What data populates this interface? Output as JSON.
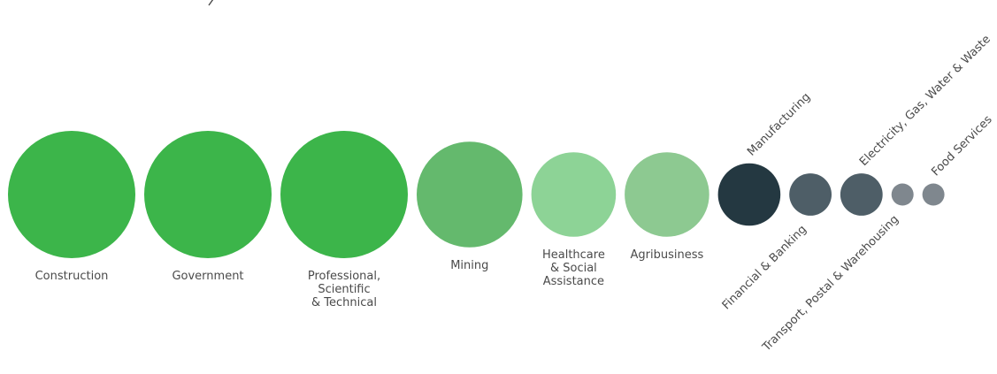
{
  "chart_data": {
    "type": "bubble",
    "series": [
      {
        "label": [
          "Construction"
        ],
        "value": 100,
        "color": "#3cb54a"
      },
      {
        "label": [
          "Government"
        ],
        "value": 100,
        "color": "#3cb54a"
      },
      {
        "label": [
          "Professional,",
          "Scientific",
          "& Technical"
        ],
        "value": 100,
        "color": "#3cb54a"
      },
      {
        "label": [
          "Mining"
        ],
        "value": 69,
        "color": "#64b96d"
      },
      {
        "label": [
          "Healthcare",
          "& Social",
          "Assistance"
        ],
        "value": 44,
        "color": "#8dd396"
      },
      {
        "label": [
          "Agribusiness"
        ],
        "value": 44,
        "color": "#8dc991"
      },
      {
        "label": [
          "Manufacturing"
        ],
        "value": 24,
        "color": "#243841"
      },
      {
        "label": [
          "Financial & Banking"
        ],
        "value": 11,
        "color": "#4e5e67"
      },
      {
        "label": [
          "Electricity, Gas, Water & Waste"
        ],
        "value": 11,
        "color": "#4e5e67"
      },
      {
        "label": [
          "Transport, Postal & Warehousing"
        ],
        "value": 3,
        "color": "#7f878e"
      },
      {
        "label": [
          "Food Services"
        ],
        "value": 3,
        "color": "#7f878e"
      }
    ]
  }
}
